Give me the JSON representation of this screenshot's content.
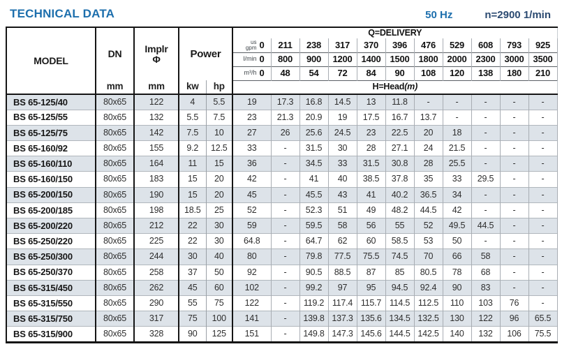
{
  "page": {
    "title": "TECHNICAL DATA",
    "frequency": "50 Hz",
    "speed": "n=2900 1/min"
  },
  "colors": {
    "title_blue": "#1d6fad",
    "speed_navy": "#2b4a71",
    "row_stripe": "#dde3e9"
  },
  "table": {
    "headers": {
      "model": "MODEL",
      "dn": "DN",
      "implr_line1": "Implr",
      "implr_line2": "Φ",
      "power": "Power",
      "mm": "mm",
      "kw": "kw",
      "hp": "hp",
      "delivery": "Q=DELIVERY",
      "head": "H=Head",
      "head_unit": "(m)",
      "unit_gpm_top": "us",
      "unit_gpm_bottom": "gpm",
      "unit_lmin": "l/min",
      "unit_m3h": "m³/h"
    },
    "flow": {
      "gpm": [
        "0",
        "211",
        "238",
        "317",
        "370",
        "396",
        "476",
        "529",
        "608",
        "793",
        "925"
      ],
      "lmin": [
        "0",
        "800",
        "900",
        "1200",
        "1400",
        "1500",
        "1800",
        "2000",
        "2300",
        "3000",
        "3500"
      ],
      "m3h": [
        "0",
        "48",
        "54",
        "72",
        "84",
        "90",
        "108",
        "120",
        "138",
        "180",
        "210"
      ]
    },
    "rows": [
      {
        "model": "BS 65-125/40",
        "dn": "80x65",
        "implr": "122",
        "kw": "4",
        "hp": "5.5",
        "head": [
          "19",
          "17.3",
          "16.8",
          "14.5",
          "13",
          "11.8",
          "-",
          "-",
          "-",
          "-",
          "-"
        ]
      },
      {
        "model": "BS 65-125/55",
        "dn": "80x65",
        "implr": "132",
        "kw": "5.5",
        "hp": "7.5",
        "head": [
          "23",
          "21.3",
          "20.9",
          "19",
          "17.5",
          "16.7",
          "13.7",
          "-",
          "-",
          "-",
          "-"
        ]
      },
      {
        "model": "BS 65-125/75",
        "dn": "80x65",
        "implr": "142",
        "kw": "7.5",
        "hp": "10",
        "head": [
          "27",
          "26",
          "25.6",
          "24.5",
          "23",
          "22.5",
          "20",
          "18",
          "-",
          "-",
          "-"
        ]
      },
      {
        "model": "BS 65-160/92",
        "dn": "80x65",
        "implr": "155",
        "kw": "9.2",
        "hp": "12.5",
        "head": [
          "33",
          "-",
          "31.5",
          "30",
          "28",
          "27.1",
          "24",
          "21.5",
          "-",
          "-",
          "-"
        ]
      },
      {
        "model": "BS 65-160/110",
        "dn": "80x65",
        "implr": "164",
        "kw": "11",
        "hp": "15",
        "head": [
          "36",
          "-",
          "34.5",
          "33",
          "31.5",
          "30.8",
          "28",
          "25.5",
          "-",
          "-",
          "-"
        ]
      },
      {
        "model": "BS 65-160/150",
        "dn": "80x65",
        "implr": "183",
        "kw": "15",
        "hp": "20",
        "head": [
          "42",
          "-",
          "41",
          "40",
          "38.5",
          "37.8",
          "35",
          "33",
          "29.5",
          "-",
          "-"
        ]
      },
      {
        "model": "BS 65-200/150",
        "dn": "80x65",
        "implr": "190",
        "kw": "15",
        "hp": "20",
        "head": [
          "45",
          "-",
          "45.5",
          "43",
          "41",
          "40.2",
          "36.5",
          "34",
          "-",
          "-",
          "-"
        ]
      },
      {
        "model": "BS 65-200/185",
        "dn": "80x65",
        "implr": "198",
        "kw": "18.5",
        "hp": "25",
        "head": [
          "52",
          "-",
          "52.3",
          "51",
          "49",
          "48.2",
          "44.5",
          "42",
          "-",
          "-",
          "-"
        ]
      },
      {
        "model": "BS 65-200/220",
        "dn": "80x65",
        "implr": "212",
        "kw": "22",
        "hp": "30",
        "head": [
          "59",
          "-",
          "59.5",
          "58",
          "56",
          "55",
          "52",
          "49.5",
          "44.5",
          "-",
          "-"
        ]
      },
      {
        "model": "BS 65-250/220",
        "dn": "80x65",
        "implr": "225",
        "kw": "22",
        "hp": "30",
        "head": [
          "64.8",
          "-",
          "64.7",
          "62",
          "60",
          "58.5",
          "53",
          "50",
          "-",
          "-",
          "-"
        ]
      },
      {
        "model": "BS 65-250/300",
        "dn": "80x65",
        "implr": "244",
        "kw": "30",
        "hp": "40",
        "head": [
          "80",
          "-",
          "79.8",
          "77.5",
          "75.5",
          "74.5",
          "70",
          "66",
          "58",
          "-",
          "-"
        ]
      },
      {
        "model": "BS 65-250/370",
        "dn": "80x65",
        "implr": "258",
        "kw": "37",
        "hp": "50",
        "head": [
          "92",
          "-",
          "90.5",
          "88.5",
          "87",
          "85",
          "80.5",
          "78",
          "68",
          "-",
          "-"
        ]
      },
      {
        "model": "BS 65-315/450",
        "dn": "80x65",
        "implr": "262",
        "kw": "45",
        "hp": "60",
        "head": [
          "102",
          "-",
          "99.2",
          "97",
          "95",
          "94.5",
          "92.4",
          "90",
          "83",
          "-",
          "-"
        ]
      },
      {
        "model": "BS 65-315/550",
        "dn": "80x65",
        "implr": "290",
        "kw": "55",
        "hp": "75",
        "head": [
          "122",
          "-",
          "119.2",
          "117.4",
          "115.7",
          "114.5",
          "112.5",
          "110",
          "103",
          "76",
          "-"
        ]
      },
      {
        "model": "BS 65-315/750",
        "dn": "80x65",
        "implr": "317",
        "kw": "75",
        "hp": "100",
        "head": [
          "141",
          "-",
          "139.8",
          "137.3",
          "135.6",
          "134.5",
          "132.5",
          "130",
          "122",
          "96",
          "65.5"
        ]
      },
      {
        "model": "BS 65-315/900",
        "dn": "80x65",
        "implr": "328",
        "kw": "90",
        "hp": "125",
        "head": [
          "151",
          "-",
          "149.8",
          "147.3",
          "145.6",
          "144.5",
          "142.5",
          "140",
          "132",
          "106",
          "75.5"
        ]
      }
    ]
  }
}
